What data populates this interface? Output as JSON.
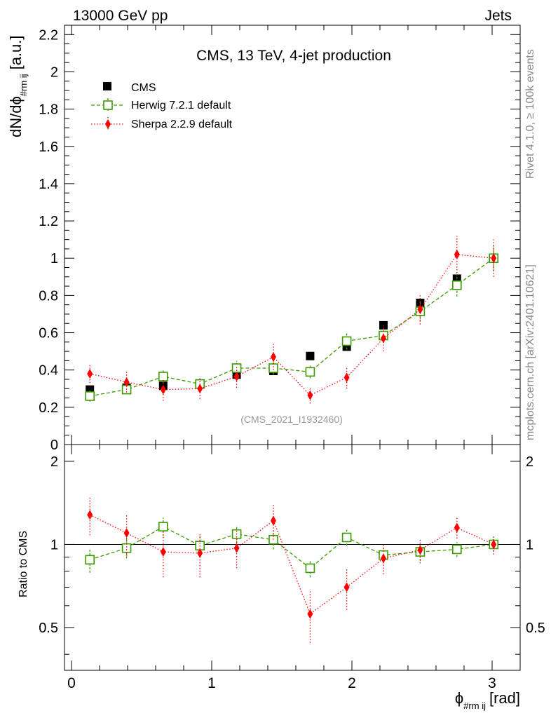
{
  "header": {
    "left": "13000 GeV pp",
    "right": "Jets",
    "side_top": "Rivet 4.1.0, ≥ 100k events",
    "side_bottom": "mcplots.cern.ch [arXiv:2401.10621]"
  },
  "chart_data": {
    "type": "scatter",
    "title": "CMS, 13 TeV, 4-jet production",
    "analysis_tag": "(CMS_2021_I1932460)",
    "xlabel": "ϕ",
    "xlabel_sub": "#rm ij",
    "xlabel_unit": "[rad]",
    "ylabel": "dN/dϕ",
    "ylabel_sub": "#rm ij",
    "ylabel_unit": "[a.u.]",
    "ratio_ylabel": "Ratio to CMS",
    "xlim": [
      -0.05,
      3.2
    ],
    "ylim": [
      0,
      2.25
    ],
    "ratio_ylim": [
      0.35,
      2.3
    ],
    "x_ticks": [
      0,
      1,
      2,
      3
    ],
    "x_tick_labels": [
      "0",
      "1",
      "2",
      "3"
    ],
    "y_ticks": [
      0,
      0.2,
      0.4,
      0.6,
      0.8,
      1,
      1.2,
      1.4,
      1.6,
      1.8,
      2,
      2.2
    ],
    "y_tick_labels": [
      "0",
      "0.2",
      "0.4",
      "0.6",
      "0.8",
      "1",
      "1.2",
      "1.4",
      "1.6",
      "1.8",
      "2",
      "2.2"
    ],
    "ratio_y_ticks": [
      0.5,
      1,
      2
    ],
    "ratio_y_tick_labels": [
      "0.5",
      "1",
      "2"
    ],
    "x": [
      0.131,
      0.393,
      0.654,
      0.916,
      1.178,
      1.44,
      1.702,
      1.963,
      2.225,
      2.487,
      2.749,
      3.011
    ],
    "series": [
      {
        "name": "CMS",
        "style": "data",
        "color": "#000000",
        "values": [
          0.295,
          0.305,
          0.315,
          0.325,
          0.375,
          0.395,
          0.475,
          0.525,
          0.64,
          0.76,
          0.89,
          1.0
        ],
        "errors": [
          0.01,
          0.01,
          0.01,
          0.01,
          0.01,
          0.01,
          0.01,
          0.012,
          0.012,
          0.015,
          0.015,
          0.015
        ]
      },
      {
        "name": "Herwig 7.2.1 default",
        "style": "open-square-dashed",
        "color": "#3a9a00",
        "values": [
          0.26,
          0.295,
          0.365,
          0.325,
          0.41,
          0.41,
          0.39,
          0.555,
          0.585,
          0.715,
          0.855,
          1.0
        ],
        "errors": [
          0.03,
          0.025,
          0.035,
          0.03,
          0.04,
          0.035,
          0.035,
          0.045,
          0.04,
          0.055,
          0.06,
          0.07
        ],
        "ratio": [
          0.88,
          0.97,
          1.16,
          0.99,
          1.09,
          1.04,
          0.82,
          1.06,
          0.915,
          0.94,
          0.96,
          1.0
        ],
        "ratio_errors": [
          0.09,
          0.08,
          0.09,
          0.08,
          0.08,
          0.08,
          0.06,
          0.07,
          0.06,
          0.07,
          0.06,
          0.06
        ]
      },
      {
        "name": "Sherpa 2.2.9 default",
        "style": "diamond-dotted",
        "color": "#ff0000",
        "values": [
          0.38,
          0.335,
          0.295,
          0.3,
          0.365,
          0.47,
          0.265,
          0.36,
          0.57,
          0.725,
          1.02,
          1.0
        ],
        "errors": [
          0.05,
          0.055,
          0.06,
          0.055,
          0.06,
          0.07,
          0.045,
          0.06,
          0.07,
          0.08,
          0.1,
          0.1
        ],
        "ratio": [
          1.28,
          1.1,
          0.94,
          0.93,
          0.97,
          1.22,
          0.56,
          0.7,
          0.89,
          0.955,
          1.15,
          1.0
        ],
        "ratio_errors": [
          0.2,
          0.19,
          0.18,
          0.17,
          0.15,
          0.18,
          0.12,
          0.12,
          0.11,
          0.1,
          0.1,
          0.08
        ]
      }
    ],
    "legend_position": "top-left"
  }
}
